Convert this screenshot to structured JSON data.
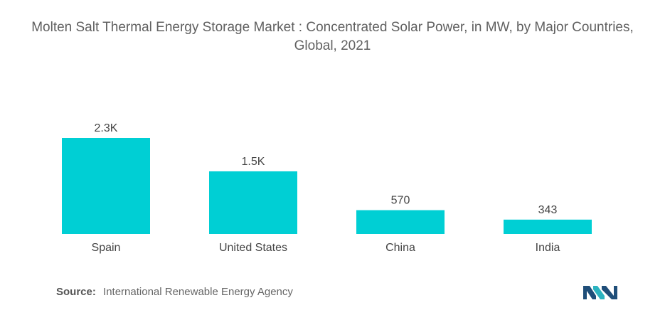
{
  "chart_data": {
    "type": "bar",
    "title": "Molten Salt Thermal Energy Storage Market : Concentrated Solar Power, in MW, by Major Countries, Global, 2021",
    "categories": [
      "Spain",
      "United States",
      "China",
      "India"
    ],
    "values": [
      2300,
      1500,
      570,
      343
    ],
    "data_labels": [
      "2.3K",
      "1.5K",
      "570",
      "343"
    ],
    "xlabel": "",
    "ylabel": "",
    "ylim": [
      0,
      2300
    ],
    "grid": false,
    "color": "#00cfd4"
  },
  "source": {
    "label": "Source:",
    "text": "International Renewable Energy Agency"
  },
  "logo": {
    "icon": "mordor-intelligence-logo",
    "colors": [
      "#1f4e79",
      "#2bb3c0"
    ]
  }
}
